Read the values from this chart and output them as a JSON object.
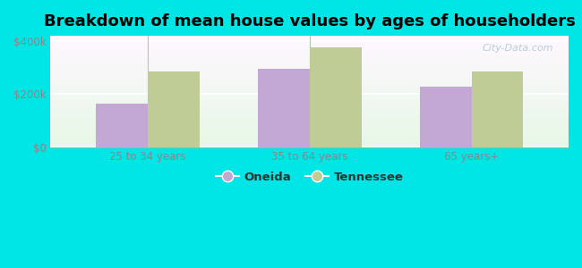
{
  "title": "Breakdown of mean house values by ages of householders",
  "categories": [
    "25 to 34 years",
    "35 to 64 years",
    "65 years+"
  ],
  "oneida_values": [
    163000,
    295000,
    228000
  ],
  "tennessee_values": [
    285000,
    378000,
    285000
  ],
  "oneida_color": "#c4a8d4",
  "tennessee_color": "#bfcc96",
  "background_color": "#00e5e5",
  "ylim": [
    0,
    420000
  ],
  "ytick_labels": [
    "$0",
    "$200k",
    "$400k"
  ],
  "ytick_vals": [
    0,
    200000,
    400000
  ],
  "bar_width": 0.32,
  "title_fontsize": 13,
  "legend_labels": [
    "Oneida",
    "Tennessee"
  ],
  "watermark": "City-Data.com",
  "divider_color": "#aaccaa",
  "tick_label_color": "#888888",
  "grid_color": "#ddeecc"
}
